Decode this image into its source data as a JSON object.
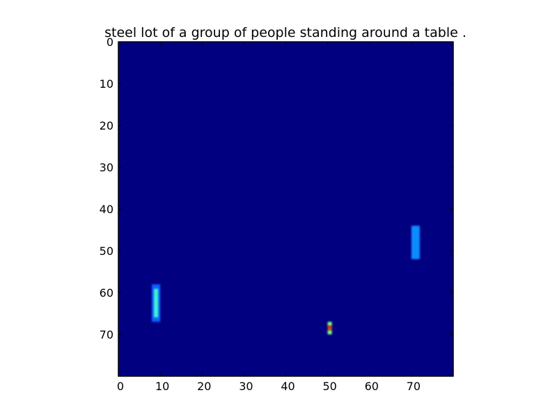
{
  "chart_data": {
    "type": "heatmap",
    "title": "steel lot of a group of people standing around a table .",
    "xlabel": "",
    "ylabel": "",
    "xlim": [
      0,
      80
    ],
    "ylim": [
      80,
      0
    ],
    "x_ticks": [
      0,
      10,
      20,
      30,
      40,
      50,
      60,
      70
    ],
    "y_ticks": [
      0,
      10,
      20,
      30,
      40,
      50,
      60,
      70
    ],
    "grid": false,
    "colormap": "jet",
    "background_color": "#000080",
    "cells": [
      {
        "label": "left-bar",
        "x": 8,
        "y": 58,
        "w": 2,
        "h": 9,
        "color": "#0a60ff",
        "inner_color": "#3cf6cc"
      },
      {
        "label": "right-bar",
        "x": 70,
        "y": 44,
        "w": 2,
        "h": 8,
        "color": "#0a8cff",
        "inner_color": "#0a8cff"
      },
      {
        "label": "point-top",
        "x": 50,
        "y": 67,
        "w": 1,
        "h": 1,
        "color": "#7cff7c"
      },
      {
        "label": "point-mid",
        "x": 50,
        "y": 68,
        "w": 1,
        "h": 1,
        "color": "#ff3a00"
      },
      {
        "label": "point-bottom",
        "x": 50,
        "y": 69,
        "w": 1,
        "h": 1,
        "color": "#7cff7c"
      }
    ]
  }
}
